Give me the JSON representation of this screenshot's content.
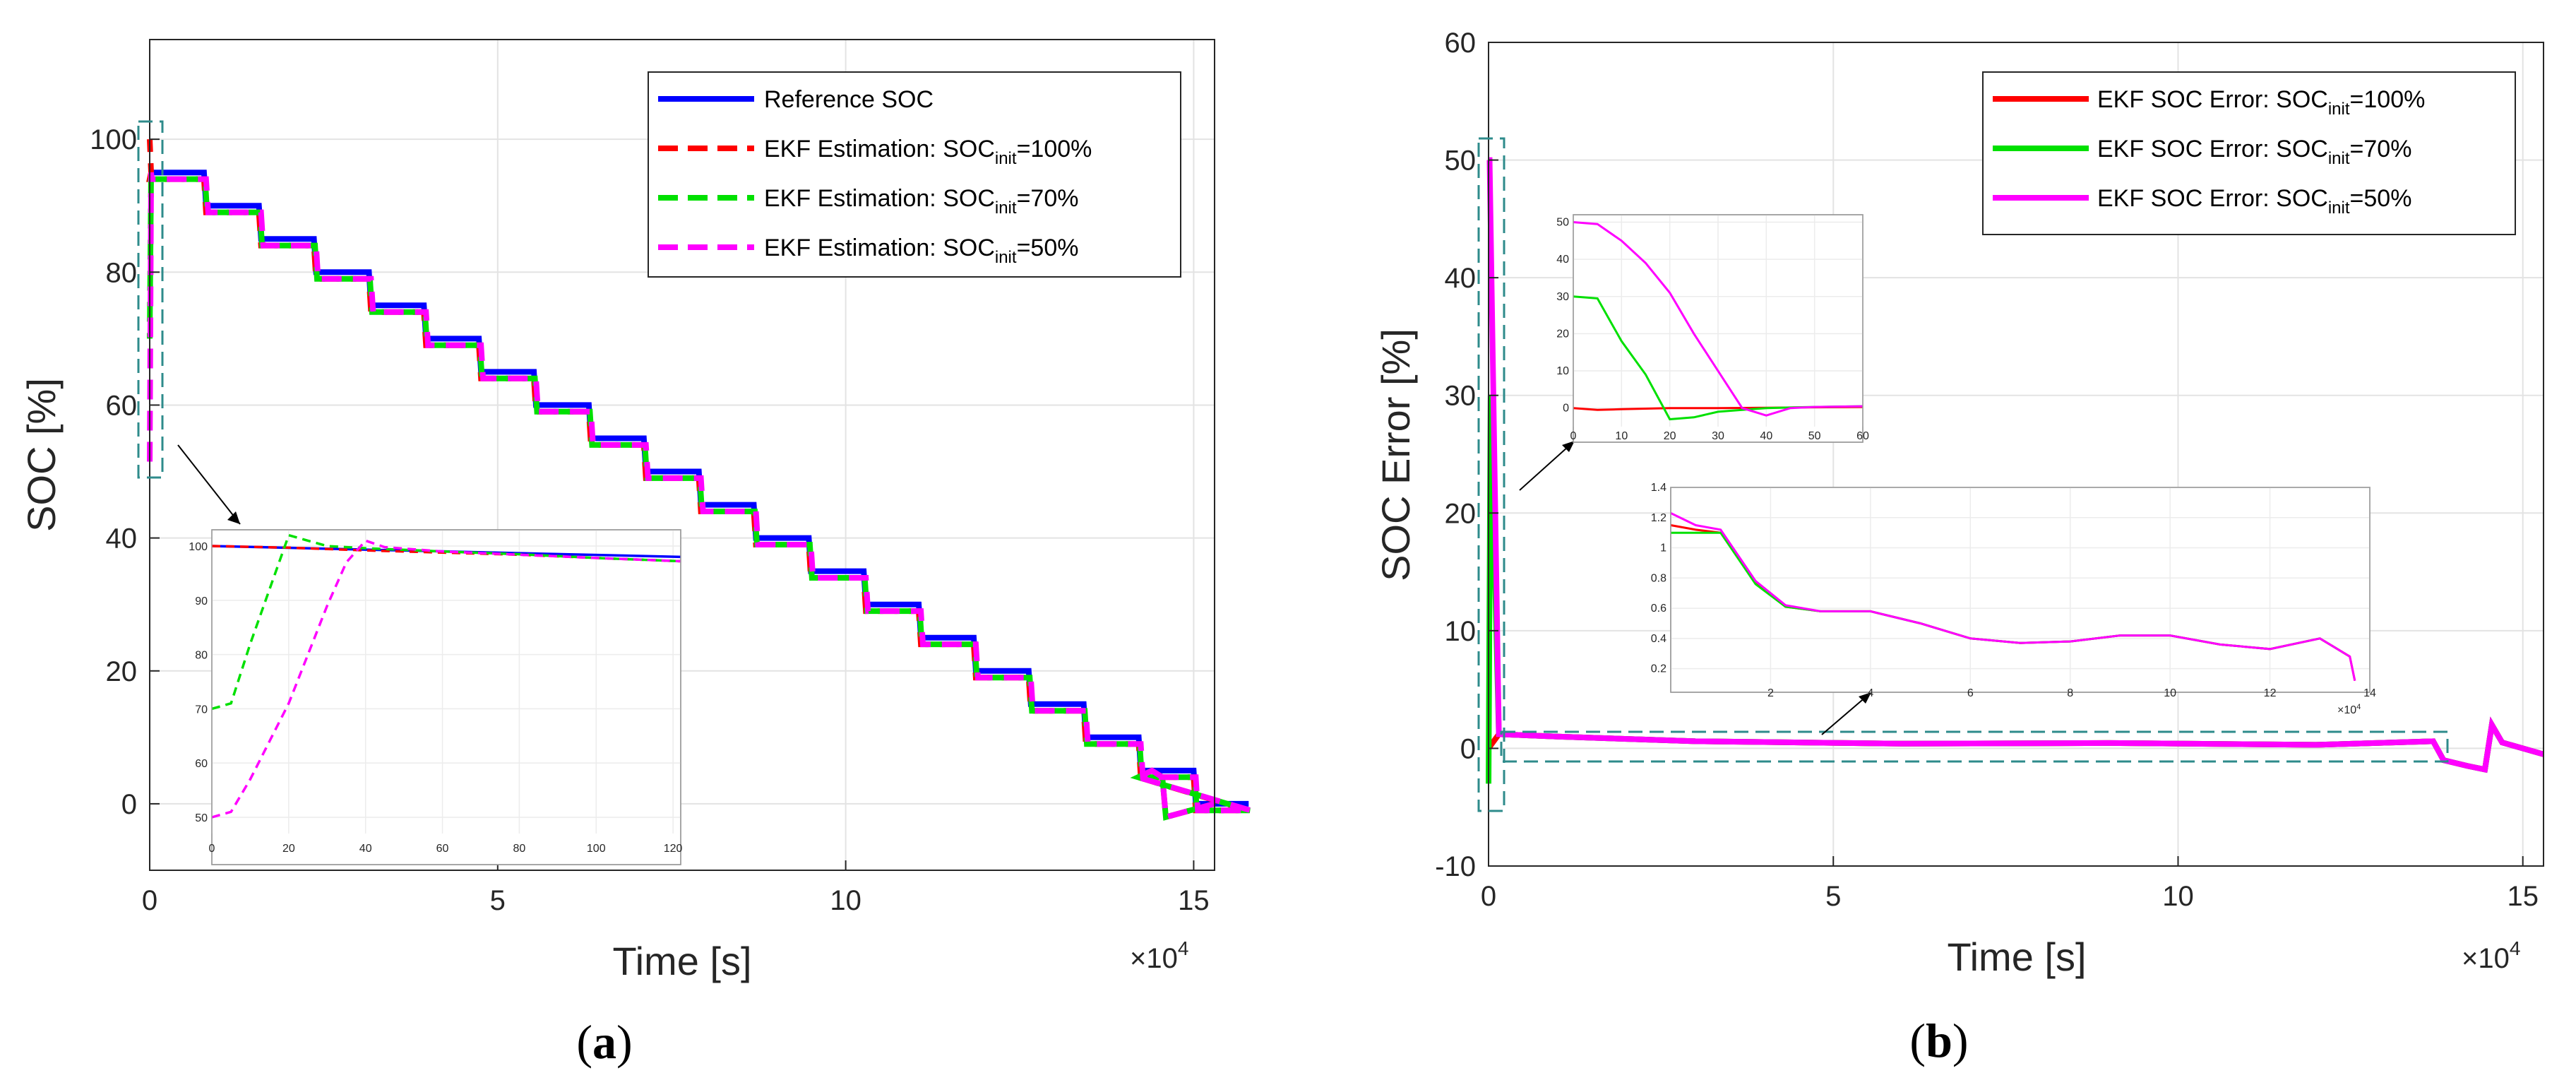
{
  "chart_data": [
    {
      "type": "line",
      "panel_label": "a",
      "ylabel": "SOC [%]",
      "xlabel": "Time [s]",
      "x_multiplier": "×10",
      "x_multiplier_exp": "4",
      "xlim": [
        0,
        153000
      ],
      "ylim": [
        -10,
        115
      ],
      "xticks": [
        0,
        50000,
        100000,
        150000
      ],
      "xtick_labels": [
        "0",
        "5",
        "10",
        "15"
      ],
      "yticks": [
        0,
        20,
        40,
        60,
        80,
        100
      ],
      "ytick_labels": [
        "0",
        "20",
        "40",
        "60",
        "80",
        "100"
      ],
      "grid": true,
      "legend_position": "top-right",
      "steps": {
        "start_soc": 100,
        "step_size": 5,
        "count": 19,
        "first_step_time": 1500,
        "rest_duration": 4000,
        "discharge_duration": 4600,
        "end_time": 153000
      },
      "series": [
        {
          "name": "Reference SOC",
          "legend_main": "Reference SOC",
          "legend_sub": "",
          "legend_tail": "",
          "color": "#0000FF",
          "style": "solid",
          "init": 100
        },
        {
          "name": "EKF Estimation: SOCinit=100%",
          "legend_main": "EKF Estimation: SOC",
          "legend_sub": "init",
          "legend_tail": "=100%",
          "color": "#FF0000",
          "style": "dashed",
          "init": 100
        },
        {
          "name": "EKF Estimation: SOCinit=70%",
          "legend_main": "EKF Estimation: SOC",
          "legend_sub": "init",
          "legend_tail": "=70%",
          "color": "#00E000",
          "style": "dashed",
          "init": 70
        },
        {
          "name": "EKF Estimation: SOCinit=50%",
          "legend_main": "EKF Estimation: SOC",
          "legend_sub": "init",
          "legend_tail": "=50%",
          "color": "#FF00FF",
          "style": "dashed",
          "init": 50
        }
      ],
      "inset": {
        "xlim": [
          0,
          122
        ],
        "ylim": [
          47,
          103
        ],
        "xtick_labels": [
          "0",
          "20",
          "40",
          "60",
          "80",
          "100",
          "120"
        ],
        "ytick_labels": [
          "50",
          "60",
          "70",
          "80",
          "90",
          "100"
        ],
        "series": [
          {
            "name": "Reference SOC",
            "color": "#0000FF",
            "style": "solid",
            "x": [
              0,
              122
            ],
            "y": [
              100,
              98
            ]
          },
          {
            "name": "EKF 100%",
            "color": "#FF0000",
            "style": "dashed",
            "x": [
              0,
              20,
              40,
              60,
              80,
              100,
              122
            ],
            "y": [
              100,
              99.7,
              99.2,
              98.8,
              98.4,
              97.8,
              97.2
            ]
          },
          {
            "name": "EKF 70%",
            "color": "#00E000",
            "style": "dashed",
            "x": [
              0,
              5,
              10,
              15,
              20,
              25,
              30,
              40,
              60,
              80,
              100,
              122
            ],
            "y": [
              70,
              71,
              82,
              92,
              102,
              101,
              100,
              99.6,
              99,
              98.5,
              97.8,
              97.2
            ]
          },
          {
            "name": "EKF 50%",
            "color": "#FF00FF",
            "style": "dashed",
            "x": [
              0,
              5,
              10,
              15,
              20,
              25,
              30,
              35,
              40,
              45,
              60,
              80,
              100,
              122
            ],
            "y": [
              50,
              51,
              57,
              64,
              71,
              80,
              89,
              97,
              101,
              99.8,
              99,
              98.4,
              97.8,
              97.2
            ]
          }
        ]
      }
    },
    {
      "type": "line",
      "panel_label": "b",
      "ylabel": "SOC Error [%]",
      "xlabel": "Time [s]",
      "x_multiplier": "×10",
      "x_multiplier_exp": "4",
      "xlim": [
        0,
        153000
      ],
      "ylim": [
        -10,
        60
      ],
      "xticks": [
        0,
        50000,
        100000,
        150000
      ],
      "xtick_labels": [
        "0",
        "5",
        "10",
        "15"
      ],
      "yticks": [
        -10,
        0,
        10,
        20,
        30,
        40,
        50,
        60
      ],
      "ytick_labels": [
        "-10",
        "0",
        "10",
        "20",
        "30",
        "40",
        "50",
        "60"
      ],
      "grid": true,
      "legend_position": "top-right",
      "series": [
        {
          "name": "EKF SOC Error: SOCinit=100%",
          "legend_main": "EKF SOC Error: SOC",
          "legend_sub": "init",
          "legend_tail": "=100%",
          "color": "#FF0000",
          "style": "solid",
          "x": [
            0,
            1500,
            10000,
            30000,
            60000,
            90000,
            120000,
            137000,
            138500,
            142000,
            144500,
            145500,
            147000,
            153000
          ],
          "y": [
            0,
            1.2,
            1.0,
            0.6,
            0.4,
            0.45,
            0.3,
            0.6,
            -1.0,
            -1.5,
            -1.8,
            2.0,
            0.5,
            -0.5
          ]
        },
        {
          "name": "EKF SOC Error: SOCinit=70%",
          "legend_main": "EKF SOC Error: SOC",
          "legend_sub": "init",
          "legend_tail": "=70%",
          "color": "#00E000",
          "style": "solid",
          "x": [
            0,
            300,
            1500,
            10000,
            30000,
            60000,
            90000,
            120000,
            137000,
            138500,
            142000,
            144500,
            145500,
            147000,
            153000
          ],
          "y": [
            -3,
            30,
            1.2,
            1.0,
            0.6,
            0.4,
            0.45,
            0.3,
            0.6,
            -1.0,
            -1.5,
            -1.8,
            2.0,
            0.5,
            -0.5
          ]
        },
        {
          "name": "EKF SOC Error: SOCinit=50%",
          "legend_main": "EKF SOC Error: SOC",
          "legend_sub": "init",
          "legend_tail": "=50%",
          "color": "#FF00FF",
          "style": "solid",
          "x": [
            0,
            150,
            1500,
            10000,
            30000,
            60000,
            90000,
            120000,
            137000,
            138500,
            142000,
            144500,
            145500,
            147000,
            153000
          ],
          "y": [
            50,
            50,
            1.2,
            1.0,
            0.6,
            0.4,
            0.45,
            0.3,
            0.6,
            -1.0,
            -1.5,
            -1.8,
            2.0,
            0.5,
            -0.5
          ]
        }
      ],
      "inset_top": {
        "xlim": [
          0,
          60
        ],
        "ylim": [
          -5,
          52
        ],
        "xtick_labels": [
          "0",
          "10",
          "20",
          "30",
          "40",
          "50",
          "60"
        ],
        "ytick_labels": [
          "0",
          "10",
          "20",
          "30",
          "40",
          "50"
        ],
        "series": [
          {
            "name": "100%",
            "color": "#FF0000",
            "x": [
              0,
              5,
              10,
              20,
              30,
              40,
              50,
              60
            ],
            "y": [
              0,
              -0.5,
              -0.3,
              0,
              0,
              0.1,
              0.2,
              0.3
            ]
          },
          {
            "name": "70%",
            "color": "#00E000",
            "x": [
              0,
              5,
              10,
              15,
              20,
              25,
              30,
              35,
              40,
              50,
              60
            ],
            "y": [
              30,
              29.5,
              18,
              9,
              -3,
              -2.5,
              -1,
              -0.5,
              0,
              0.3,
              0.5
            ]
          },
          {
            "name": "50%",
            "color": "#FF00FF",
            "x": [
              0,
              5,
              10,
              15,
              20,
              25,
              30,
              35,
              40,
              45,
              50,
              60
            ],
            "y": [
              50,
              49.5,
              45,
              39,
              31,
              20,
              10,
              0,
              -2,
              0,
              0.3,
              0.5
            ]
          }
        ]
      },
      "inset_bottom": {
        "xlim": [
          0,
          14
        ],
        "ylim": [
          0.1,
          1.4
        ],
        "xtick_labels": [
          "2",
          "4",
          "6",
          "8",
          "10",
          "12",
          "14"
        ],
        "ytick_labels": [
          "0.2",
          "0.4",
          "0.6",
          "0.8",
          "1",
          "1.2",
          "1.4"
        ],
        "xmult": "×10",
        "xmult_exp": "4",
        "series": [
          {
            "name": "100%",
            "color": "#FF0000",
            "x": [
              0,
              0.5,
              1,
              1.7,
              2.3,
              3,
              4,
              5,
              6,
              7,
              8,
              9,
              10,
              11,
              12,
              13,
              13.6,
              13.7
            ],
            "y": [
              1.15,
              1.12,
              1.1,
              0.77,
              0.61,
              0.58,
              0.58,
              0.5,
              0.4,
              0.37,
              0.38,
              0.42,
              0.42,
              0.36,
              0.33,
              0.4,
              0.28,
              0.12
            ]
          },
          {
            "name": "70%",
            "color": "#00E000",
            "x": [
              0,
              0.5,
              1,
              1.7,
              2.3,
              3,
              4,
              5,
              6,
              7,
              8,
              9,
              10,
              11,
              12,
              13,
              13.6
            ],
            "y": [
              1.1,
              1.1,
              1.1,
              0.76,
              0.61,
              0.58,
              0.58,
              0.5,
              0.4,
              0.37,
              0.38,
              0.42,
              0.42,
              0.36,
              0.33,
              0.4,
              0.28
            ]
          },
          {
            "name": "50%",
            "color": "#FF00FF",
            "x": [
              0,
              0.5,
              1,
              1.7,
              2.3,
              3,
              4,
              5,
              6,
              7,
              8,
              9,
              10,
              11,
              12,
              13,
              13.6,
              13.7
            ],
            "y": [
              1.23,
              1.15,
              1.12,
              0.78,
              0.62,
              0.58,
              0.58,
              0.5,
              0.4,
              0.37,
              0.38,
              0.42,
              0.42,
              0.36,
              0.33,
              0.4,
              0.28,
              0.12
            ]
          }
        ]
      }
    }
  ]
}
